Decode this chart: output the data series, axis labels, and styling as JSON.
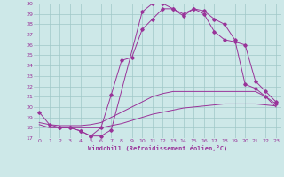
{
  "xlabel": "Windchill (Refroidissement éolien,°C)",
  "bg_color": "#cde8e8",
  "grid_color": "#a0c8c8",
  "line_color": "#993399",
  "x_range": [
    -0.5,
    23.5
  ],
  "y_range": [
    17,
    30
  ],
  "yticks": [
    17,
    18,
    19,
    20,
    21,
    22,
    23,
    24,
    25,
    26,
    27,
    28,
    29,
    30
  ],
  "xticks": [
    0,
    1,
    2,
    3,
    4,
    5,
    6,
    7,
    8,
    9,
    10,
    11,
    12,
    13,
    14,
    15,
    16,
    17,
    18,
    19,
    20,
    21,
    22,
    23
  ],
  "series": [
    {
      "x": [
        0,
        1,
        2,
        3,
        4,
        5,
        6,
        7,
        10,
        11,
        12,
        13,
        14,
        15,
        16,
        17,
        18,
        19,
        20,
        21,
        22,
        23
      ],
      "y": [
        19.5,
        18.3,
        18.0,
        18.0,
        17.7,
        17.2,
        17.2,
        17.8,
        29.2,
        30.0,
        30.0,
        29.5,
        28.8,
        29.5,
        29.3,
        28.5,
        28.0,
        26.5,
        22.2,
        21.8,
        21.0,
        20.3
      ],
      "marker": true
    },
    {
      "x": [
        2,
        3,
        4,
        5,
        6,
        7,
        8,
        9,
        10,
        11,
        12,
        13,
        14,
        15,
        16,
        17,
        18,
        19,
        20,
        21,
        22,
        23
      ],
      "y": [
        18.0,
        18.0,
        17.7,
        17.2,
        18.0,
        21.2,
        24.5,
        24.8,
        27.5,
        28.5,
        29.5,
        29.5,
        29.0,
        29.5,
        29.0,
        27.3,
        26.5,
        26.3,
        26.0,
        22.5,
        21.5,
        20.5
      ],
      "marker": true
    },
    {
      "x": [
        0,
        1,
        2,
        3,
        4,
        5,
        6,
        7,
        8,
        9,
        10,
        11,
        12,
        13,
        14,
        15,
        16,
        17,
        18,
        19,
        20,
        21,
        22,
        23
      ],
      "y": [
        18.5,
        18.3,
        18.2,
        18.2,
        18.2,
        18.3,
        18.5,
        19.0,
        19.5,
        20.0,
        20.5,
        21.0,
        21.3,
        21.5,
        21.5,
        21.5,
        21.5,
        21.5,
        21.5,
        21.5,
        21.5,
        21.5,
        21.0,
        20.0
      ],
      "marker": false
    },
    {
      "x": [
        0,
        1,
        2,
        3,
        4,
        5,
        6,
        7,
        8,
        9,
        10,
        11,
        12,
        13,
        14,
        15,
        16,
        17,
        18,
        19,
        20,
        21,
        22,
        23
      ],
      "y": [
        18.3,
        18.0,
        18.0,
        18.0,
        18.0,
        18.0,
        18.0,
        18.2,
        18.4,
        18.7,
        19.0,
        19.3,
        19.5,
        19.7,
        19.9,
        20.0,
        20.1,
        20.2,
        20.3,
        20.3,
        20.3,
        20.3,
        20.2,
        20.1
      ],
      "marker": false
    }
  ]
}
